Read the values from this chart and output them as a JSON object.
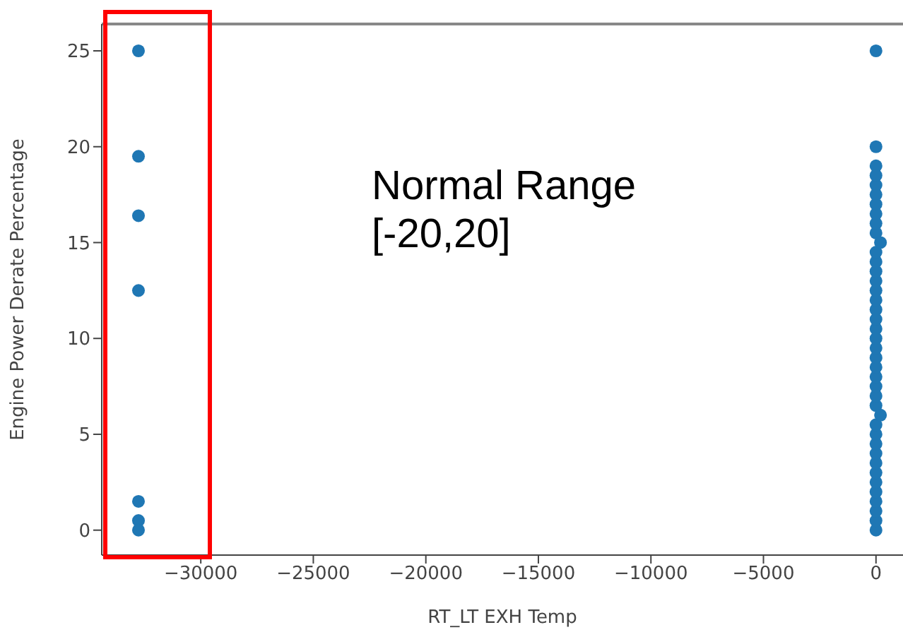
{
  "chart_data": {
    "type": "scatter",
    "xlabel": "RT_LT EXH Temp",
    "ylabel": "Engine Power Derate Percentage",
    "annotations": [
      "Normal Range\n[-20,20]"
    ],
    "xlim": [
      -34400,
      1200
    ],
    "xticks": [
      -30000,
      -25000,
      -20000,
      -15000,
      -10000,
      -5000,
      0
    ],
    "ylim": [
      -1.3,
      26.4
    ],
    "yticks": [
      0,
      5,
      10,
      15,
      20,
      25
    ],
    "grid": false,
    "marker": "circle",
    "series": [
      {
        "color": "#1f77b4",
        "x": [
          -32768,
          -32768,
          -32768,
          -32768,
          -32768,
          -32768,
          -32768
        ],
        "values": [
          25,
          19.5,
          16.4,
          12.5,
          1.5,
          0.5,
          0
        ]
      },
      {
        "color": "#1f77b4",
        "x": [
          0,
          0,
          0,
          0,
          0,
          0,
          0,
          0,
          0,
          0,
          0,
          0,
          0,
          0,
          0,
          0,
          0,
          0,
          0,
          0,
          0,
          0,
          0,
          0,
          0,
          0,
          0,
          0,
          0,
          0,
          0,
          0,
          0,
          0,
          0,
          0,
          0,
          0,
          0,
          200,
          200
        ],
        "values": [
          0,
          0.5,
          1,
          1.5,
          2,
          2.5,
          3,
          3.5,
          4,
          4.5,
          5,
          5.5,
          6.5,
          7,
          7.5,
          8,
          8.5,
          9,
          9.5,
          10,
          10.5,
          11,
          11.5,
          12,
          12.5,
          13,
          13.5,
          14,
          14.5,
          15.5,
          16,
          16.5,
          17,
          17.5,
          18,
          18.5,
          19,
          20,
          25,
          15,
          6
        ]
      }
    ]
  }
}
